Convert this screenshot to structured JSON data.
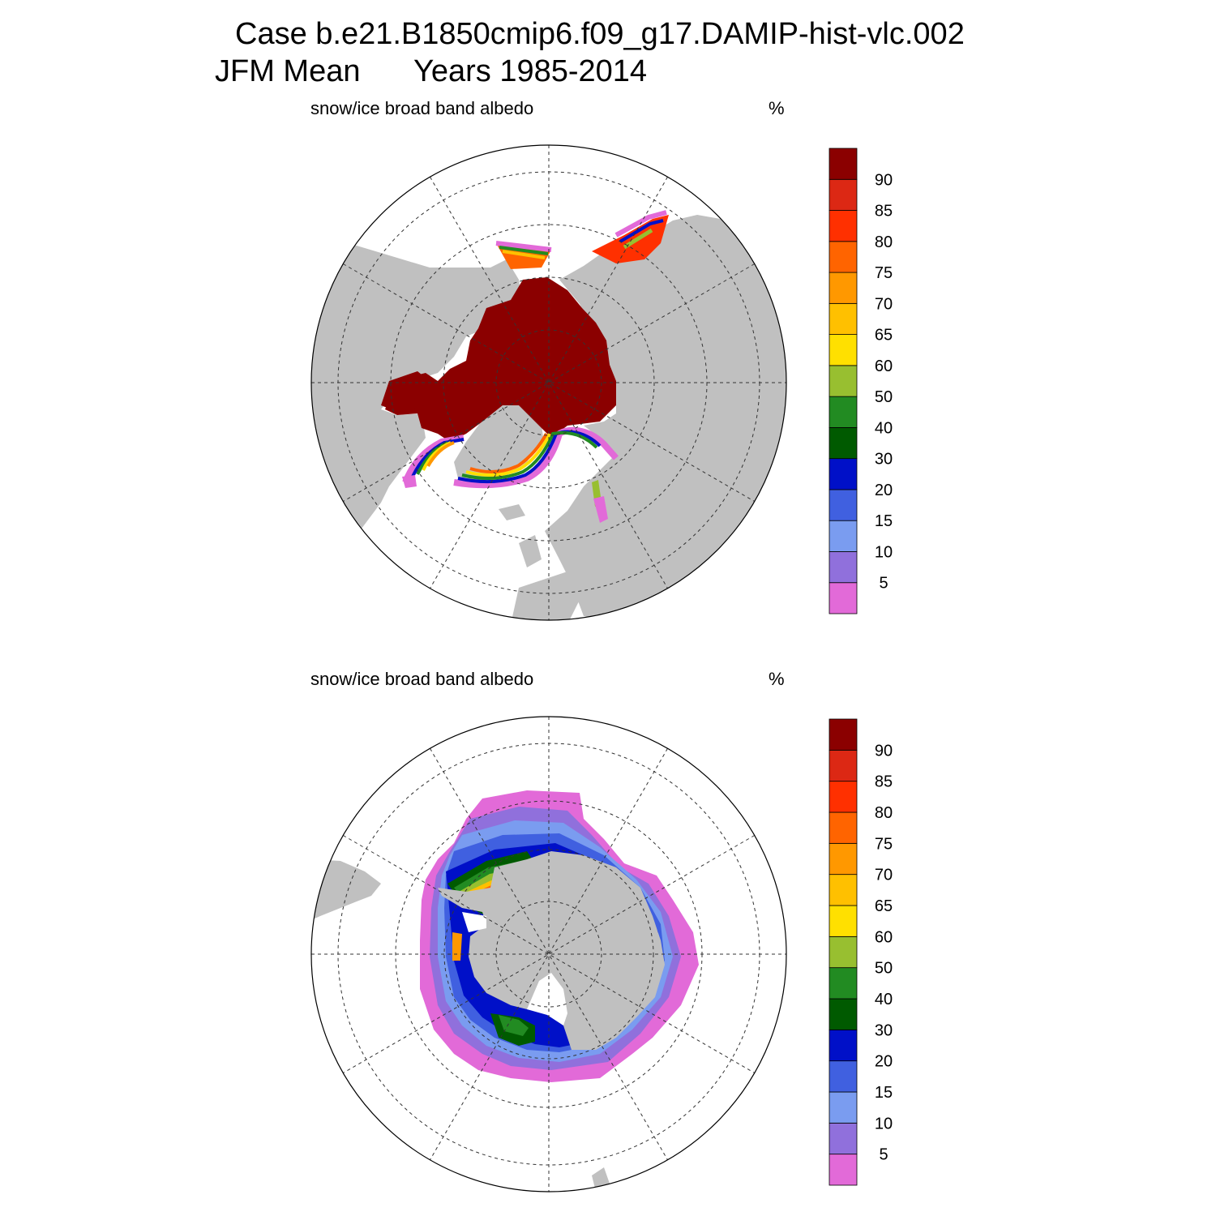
{
  "header": {
    "case_line": "Case b.e21.B1850cmip6.f09_g17.DAMIP-hist-vlc.002",
    "season": "JFM Mean",
    "years": "Years 1985-2014"
  },
  "panels": [
    {
      "id": "north",
      "variable": "snow/ice broad band albedo",
      "units": "%"
    },
    {
      "id": "south",
      "variable": "snow/ice broad band albedo",
      "units": "%"
    }
  ],
  "colorbar": {
    "levels": [
      "5",
      "10",
      "15",
      "20",
      "30",
      "40",
      "50",
      "60",
      "65",
      "70",
      "75",
      "80",
      "85",
      "90"
    ],
    "colors": [
      "#e26ad8",
      "#9070dc",
      "#7a9cf0",
      "#4060e0",
      "#0010c8",
      "#005a00",
      "#228b22",
      "#98bf30",
      "#ffe000",
      "#ffc000",
      "#ff9800",
      "#ff6400",
      "#ff3000",
      "#dc2814",
      "#8b0000"
    ]
  },
  "colors": {
    "land": "#c0c0c0",
    "ocean": "#ffffff"
  }
}
